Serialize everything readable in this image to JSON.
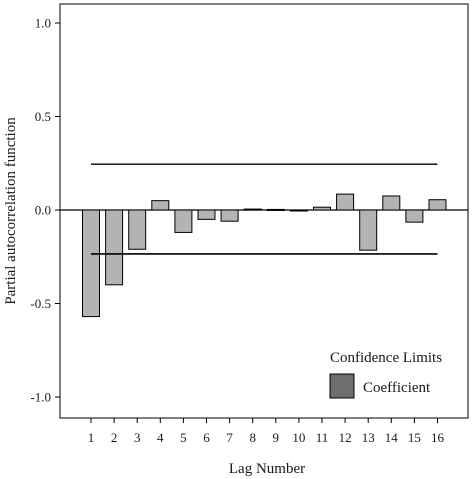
{
  "chart_data": {
    "type": "bar",
    "xlabel": "Lag Number",
    "ylabel": "Partial autocorrelation function",
    "ylim": [
      -1.1,
      1.1
    ],
    "yticks": [
      1.0,
      0.5,
      0.0,
      -0.5,
      -1.0
    ],
    "ytick_labels": [
      "1.0",
      "0.5",
      "0.0",
      "-0.5",
      "-1.0"
    ],
    "categories": [
      "1",
      "2",
      "3",
      "4",
      "5",
      "6",
      "7",
      "8",
      "9",
      "10",
      "11",
      "12",
      "13",
      "14",
      "15",
      "16"
    ],
    "values": [
      -0.57,
      -0.4,
      -0.21,
      0.05,
      -0.12,
      -0.05,
      -0.06,
      0.005,
      0.003,
      0.0,
      0.015,
      0.085,
      -0.215,
      0.075,
      -0.065,
      0.055
    ],
    "confidence_limits": {
      "upper": 0.245,
      "lower": -0.235
    },
    "legend": {
      "placement": "bottom-right",
      "items": [
        {
          "label": "Confidence Limits",
          "kind": "line"
        },
        {
          "label": "Coefficient",
          "kind": "bar"
        }
      ]
    },
    "colors": {
      "bar_fill": "#b3b3b3",
      "legend_swatch": "#6e6e6e",
      "line": "#000000"
    }
  }
}
